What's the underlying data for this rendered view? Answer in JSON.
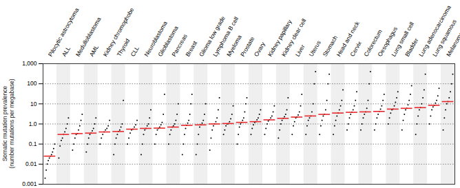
{
  "chart_data": {
    "type": "scatter",
    "ylabel": [
      "Somatic mutation prevalence",
      "(number mutations per megabase)"
    ],
    "log": "y",
    "grid": true,
    "color": "#000000",
    "median_color": "#e8282b",
    "ylim": [
      0.001,
      1000
    ],
    "yticks": [
      0.001,
      0.01,
      0.1,
      {
        "value": 1,
        "label": "1.0"
      },
      10,
      100,
      {
        "value": 1000,
        "label": "1,000"
      }
    ],
    "categories": [
      "Pilocytic astrocytoma",
      "ALL",
      "Medulloblastoma",
      "AML",
      "Kidney chromophobe",
      "Thyroid",
      "CLL",
      "Neuroblastoma",
      "Glioblastoma",
      "Pancreas",
      "Breast",
      "Glioma low grade",
      "Lymphoma B cell",
      "Myeloma",
      "Prostate",
      "Ovary",
      "Kidney papillary",
      "Kidney clear cell",
      "Liver",
      "Uterus",
      "Stomach",
      "Head and neck",
      "Cervix",
      "Colorectum",
      "Oesophagus",
      "Lung small cell",
      "Bladder",
      "Lung adenocarcinoma",
      "Lung squamous",
      "Melanoma"
    ],
    "medians": [
      0.025,
      0.3,
      0.33,
      0.35,
      0.4,
      0.42,
      0.55,
      0.6,
      0.62,
      0.7,
      0.85,
      0.9,
      1.0,
      1.05,
      1.2,
      1.3,
      1.6,
      1.9,
      2.2,
      2.5,
      3.0,
      3.5,
      3.8,
      4.0,
      4.2,
      5.5,
      6.0,
      6.5,
      8.5,
      13
    ],
    "samples": [
      [
        0.002,
        0.005,
        0.01,
        0.015,
        0.02,
        0.025,
        0.03,
        0.04,
        0.06,
        0.1
      ],
      [
        0.02,
        0.08,
        0.15,
        0.2,
        0.3,
        0.4,
        0.6,
        1,
        2
      ],
      [
        0.05,
        0.1,
        0.2,
        0.3,
        0.33,
        0.5,
        0.8,
        1.5,
        3
      ],
      [
        0.04,
        0.1,
        0.2,
        0.3,
        0.35,
        0.45,
        0.6,
        1,
        2
      ],
      [
        0.1,
        0.2,
        0.3,
        0.4,
        0.5,
        0.6,
        0.8,
        1.5
      ],
      [
        0.03,
        0.1,
        0.2,
        0.3,
        0.42,
        0.5,
        0.7,
        1,
        15
      ],
      [
        0.1,
        0.2,
        0.35,
        0.5,
        0.55,
        0.7,
        0.9,
        1.5
      ],
      [
        0.03,
        0.1,
        0.3,
        0.5,
        0.6,
        0.8,
        1,
        2,
        5
      ],
      [
        0.1,
        0.3,
        0.5,
        0.6,
        0.7,
        0.9,
        1.2,
        3,
        30
      ],
      [
        0.1,
        0.3,
        0.5,
        0.7,
        0.8,
        1,
        1.5,
        3,
        10
      ],
      [
        0.03,
        0.1,
        0.3,
        0.6,
        0.85,
        1.1,
        1.5,
        3,
        10,
        30
      ],
      [
        0.03,
        0.1,
        0.3,
        0.7,
        0.9,
        1.1,
        1.5,
        3,
        10
      ],
      [
        0.05,
        0.2,
        0.5,
        0.8,
        1,
        1.3,
        2,
        5,
        20
      ],
      [
        0.3,
        0.5,
        0.8,
        1,
        1.05,
        1.3,
        1.8,
        3,
        8
      ],
      [
        0.1,
        0.3,
        0.7,
        1,
        1.2,
        1.5,
        2,
        4,
        10,
        20
      ],
      [
        0.3,
        0.6,
        0.9,
        1.2,
        1.3,
        1.6,
        2,
        3,
        5
      ],
      [
        0.3,
        0.6,
        1,
        1.4,
        1.6,
        2,
        2.5,
        4,
        8
      ],
      [
        0.2,
        0.5,
        1,
        1.5,
        1.9,
        2.3,
        3,
        5,
        20
      ],
      [
        0.3,
        0.8,
        1.3,
        2,
        2.2,
        2.8,
        4,
        8,
        30
      ],
      [
        0.3,
        0.8,
        1.5,
        2,
        2.5,
        4,
        10,
        100,
        400
      ],
      [
        0.3,
        0.8,
        1.5,
        2.5,
        3,
        5,
        15,
        100,
        300
      ],
      [
        0.3,
        0.8,
        1.5,
        2.5,
        3.5,
        5,
        8,
        15,
        50
      ],
      [
        0.5,
        1,
        2,
        3,
        3.8,
        5,
        8,
        15,
        40
      ],
      [
        0.5,
        1,
        2,
        3,
        4,
        6,
        15,
        100,
        400
      ],
      [
        0.5,
        1,
        2,
        3,
        4.2,
        5.5,
        8,
        15,
        30
      ],
      [
        1,
        2,
        3.5,
        5,
        5.5,
        8,
        12,
        20,
        40
      ],
      [
        0.5,
        1.5,
        3,
        5,
        6,
        9,
        15,
        30,
        80
      ],
      [
        0.3,
        1,
        2.5,
        5,
        6.5,
        10,
        20,
        50,
        300
      ],
      [
        1,
        2.5,
        5,
        7,
        8.5,
        11,
        15,
        25,
        60
      ],
      [
        0.5,
        2,
        5,
        10,
        13,
        20,
        40,
        100,
        300
      ]
    ]
  }
}
